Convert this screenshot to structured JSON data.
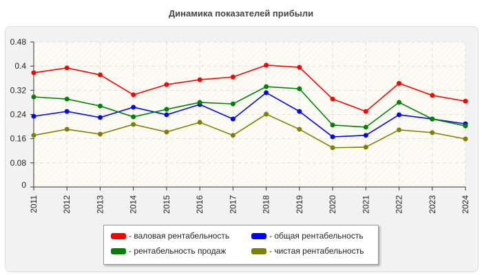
{
  "chart_data": {
    "type": "line",
    "title": "Динамика показателей прибыли",
    "categories": [
      "2011",
      "2012",
      "2013",
      "2014",
      "2015",
      "2016",
      "2017",
      "2018",
      "2019",
      "2020",
      "2021",
      "2022",
      "2023",
      "2024"
    ],
    "ylim": [
      0,
      0.48
    ],
    "yticks": [
      "0",
      "0.08",
      "0.16",
      "0.24",
      "0.32",
      "0.4",
      "0.48"
    ],
    "grid": true,
    "legend_position": "bottom",
    "series": [
      {
        "name": "- валовая рентабельность",
        "color": "#ff0000",
        "values": [
          0.378,
          0.394,
          0.371,
          0.305,
          0.339,
          0.355,
          0.364,
          0.403,
          0.396,
          0.291,
          0.25,
          0.343,
          0.303,
          0.284
        ]
      },
      {
        "name": "- общая рентабельность",
        "color": "#0000ff",
        "values": [
          0.234,
          0.25,
          0.23,
          0.264,
          0.239,
          0.273,
          0.225,
          0.312,
          0.25,
          0.166,
          0.171,
          0.239,
          0.225,
          0.209
        ]
      },
      {
        "name": "- рентабельность продаж",
        "color": "#008000",
        "values": [
          0.298,
          0.291,
          0.268,
          0.232,
          0.257,
          0.28,
          0.275,
          0.332,
          0.325,
          0.205,
          0.198,
          0.28,
          0.225,
          0.202
        ]
      },
      {
        "name": "- чистая рентабельность",
        "color": "#808000",
        "values": [
          0.171,
          0.191,
          0.175,
          0.207,
          0.182,
          0.214,
          0.171,
          0.241,
          0.191,
          0.13,
          0.132,
          0.189,
          0.18,
          0.159
        ]
      }
    ]
  }
}
